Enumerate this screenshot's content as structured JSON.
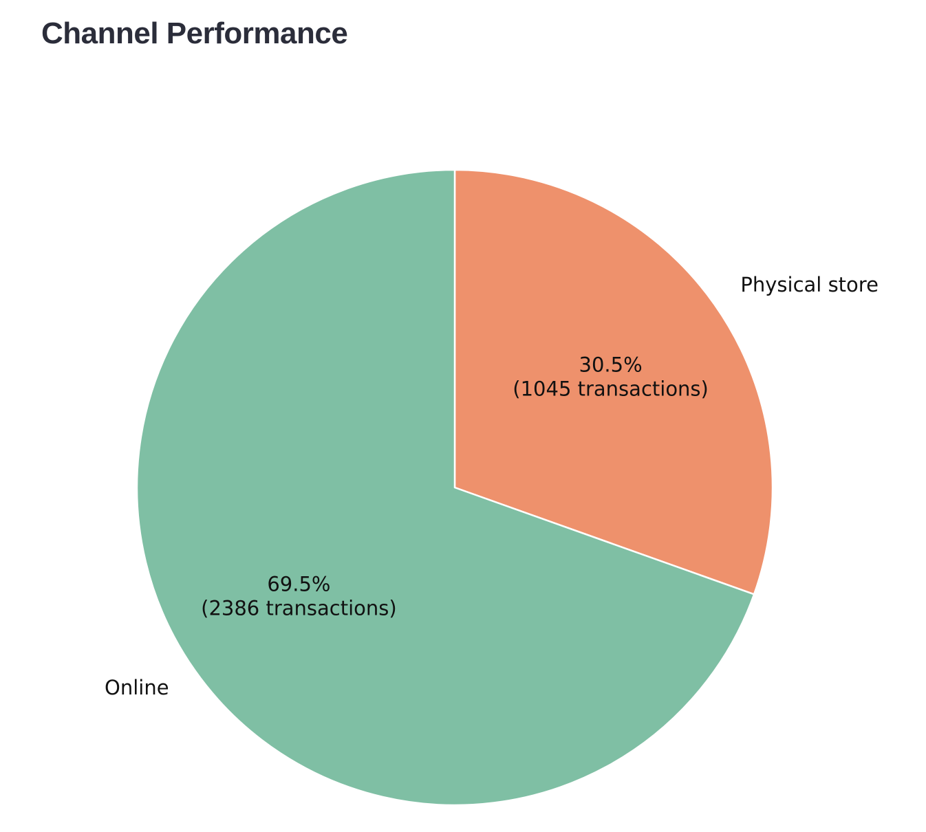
{
  "page": {
    "title": "Channel Performance"
  },
  "chart_data": {
    "type": "pie",
    "title": "",
    "start_angle_deg": 90,
    "direction": "clockwise",
    "slices": [
      {
        "label": "Physical store",
        "value": 1045,
        "percent": 30.5,
        "pct_text": "30.5%",
        "count_text": "(1045 transactions)",
        "color": "#EE916C"
      },
      {
        "label": "Online",
        "value": 2386,
        "percent": 69.5,
        "pct_text": "69.5%",
        "count_text": "(2386 transactions)",
        "color": "#7FBFA4"
      }
    ],
    "edge_color": "#FFFFFF",
    "legend": "none"
  }
}
